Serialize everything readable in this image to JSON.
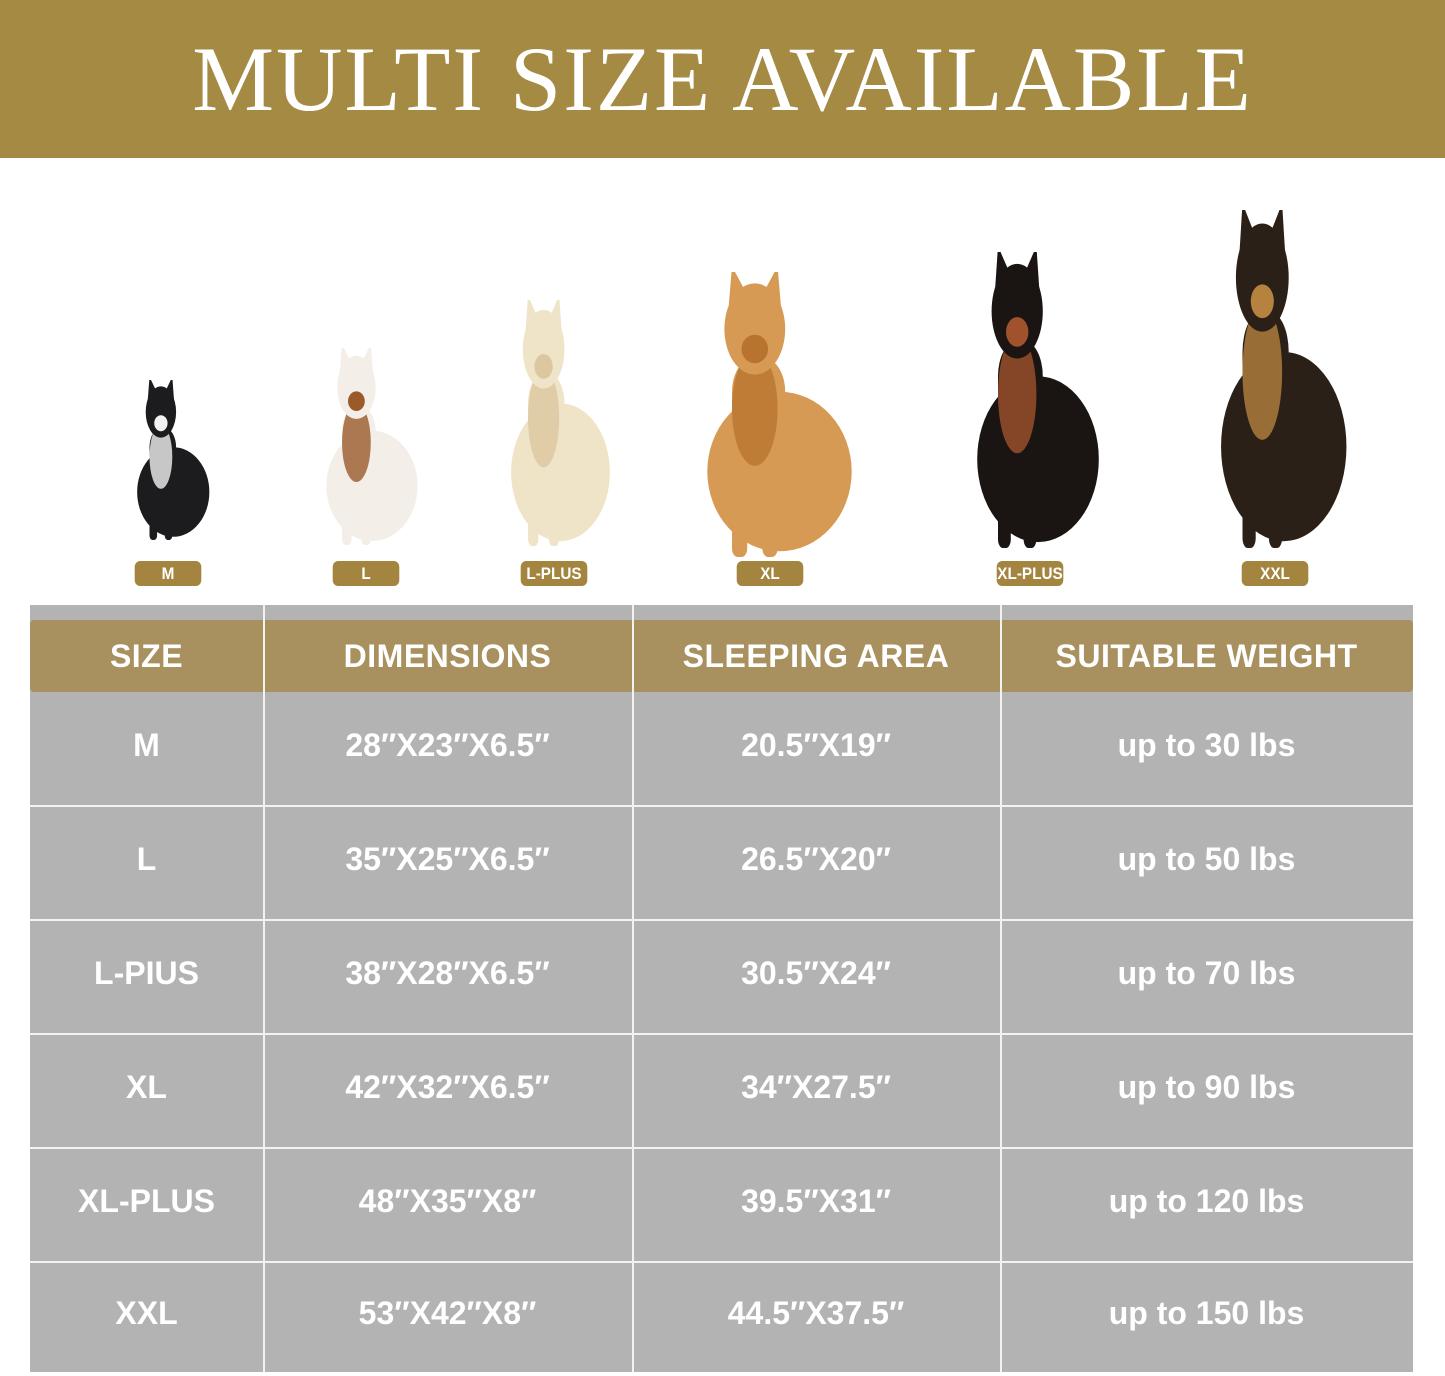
{
  "banner": {
    "title": "MULTI SIZE AVAILABLE"
  },
  "colors": {
    "gold": "#a58a44",
    "header_gold": "#a8915e",
    "table_gray": "#b3b3b3"
  },
  "dogs": [
    {
      "label": "M",
      "breed_icon": "french-bulldog"
    },
    {
      "label": "L",
      "breed_icon": "beagle"
    },
    {
      "label": "L-PLUS",
      "breed_icon": "labrador"
    },
    {
      "label": "XL",
      "breed_icon": "golden-retriever"
    },
    {
      "label": "XL-PLUS",
      "breed_icon": "doberman"
    },
    {
      "label": "XXL",
      "breed_icon": "german-shepherd"
    }
  ],
  "table": {
    "headers": [
      "SIZE",
      "DIMENSIONS",
      "SLEEPING AREA",
      "SUITABLE WEIGHT"
    ],
    "rows": [
      [
        "M",
        "28″X23″X6.5″",
        "20.5″X19″",
        "up to 30 lbs"
      ],
      [
        "L",
        "35″X25″X6.5″",
        "26.5″X20″",
        "up to 50 lbs"
      ],
      [
        "L-PIUS",
        "38″X28″X6.5″",
        "30.5″X24″",
        "up to 70 lbs"
      ],
      [
        "XL",
        "42″X32″X6.5″",
        "34″X27.5″",
        "up to 90 lbs"
      ],
      [
        "XL-PLUS",
        "48″X35″X8″",
        "39.5″X31″",
        "up to 120 lbs"
      ],
      [
        "XXL",
        "53″X42″X8″",
        "44.5″X37.5″",
        "up to 150 lbs"
      ]
    ]
  }
}
